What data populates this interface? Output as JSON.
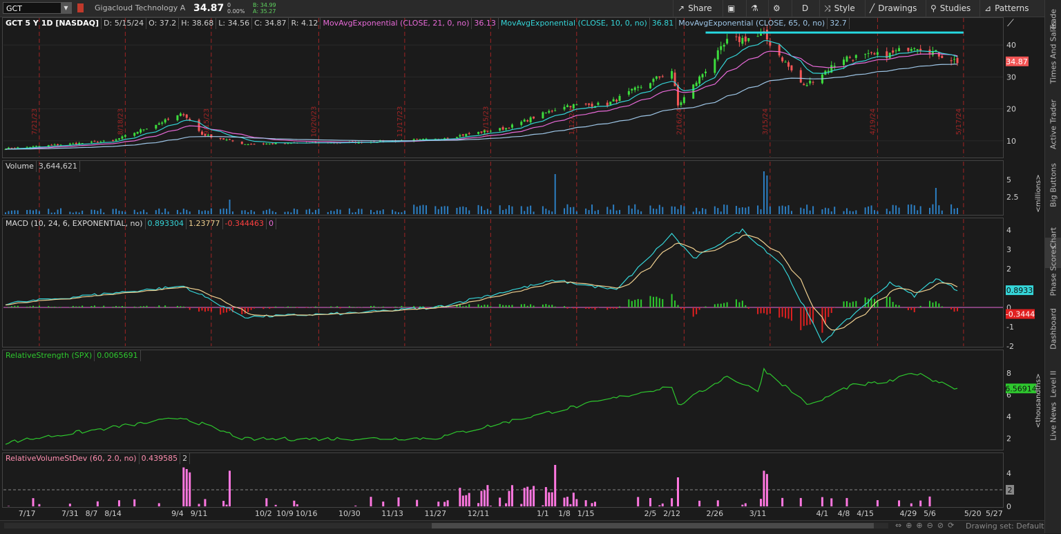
{
  "topbar": {
    "symbol": "GCT",
    "company": "Gigacloud Technology A",
    "last": "34.87",
    "change_line1": "0",
    "change_line2": "0.00%",
    "bid": "B: 34.99",
    "ask": "A: 35.27",
    "share": "Share",
    "timeframe": "D",
    "style": "Style",
    "drawings": "Drawings",
    "studies": "Studies",
    "patterns": "Patterns"
  },
  "price_panel": {
    "title": "GCT 5 Y 1D [NASDAQ]",
    "ohlc": [
      "D: 5/15/24",
      "O: 37.2",
      "H: 38.68",
      "L: 34.56",
      "C: 34.87",
      "R: 4.12"
    ],
    "ema21_label": "MovAvgExponential (CLOSE, 21, 0, no)",
    "ema21_value": "36.13",
    "ema10_label": "MovAvgExponential (CLOSE, 10, 0, no)",
    "ema10_value": "36.81",
    "ema65_label": "MovAvgExponential (CLOSE, 65, 0, no)",
    "ema65_value": "32.7",
    "price_tag": "34.87",
    "y_ticks": [
      "40",
      "30",
      "20",
      "10"
    ],
    "event_dates": [
      "7/21/23",
      "8/18/23",
      "9/15/23",
      "10/20/23",
      "11/17/23",
      "12/15/23",
      "1/12/24",
      "2/16/24",
      "3/15/24",
      "4/19/24",
      "5/17/24"
    ]
  },
  "volume_panel": {
    "title": "Volume",
    "value": "3,644,621",
    "y_ticks": [
      "5",
      "2.5"
    ],
    "units": "<millions>"
  },
  "macd_panel": {
    "title": "MACD (10, 24, 6, EXPONENTIAL, no)",
    "value": "0.893304",
    "avg": "1.23777",
    "diff": "-0.344463",
    "zero": "0",
    "y_ticks": [
      "4",
      "3",
      "2",
      "0",
      "-1",
      "-2"
    ],
    "value_tag": "0.8933",
    "diff_tag": "-0.3444"
  },
  "rs_panel": {
    "title": "RelativeStrength (SPX)",
    "value": "0.0065691",
    "y_ticks": [
      "8",
      "6",
      "4",
      "2"
    ],
    "value_tag": "6.56914",
    "units": "<thousandths>"
  },
  "rvsd_panel": {
    "title": "RelativeVolumeStDev (60, 2.0, no)",
    "value": "0.439585",
    "threshold": "2",
    "y_ticks": [
      "4",
      "0"
    ],
    "threshold_tag": "2"
  },
  "x_axis": [
    "7/17",
    "7/31",
    "8/7",
    "8/14",
    "9/4",
    "9/11",
    "10/2",
    "10/9",
    "10/16",
    "10/30",
    "11/13",
    "11/27",
    "12/11",
    "1/1",
    "1/8",
    "1/15",
    "2/5",
    "2/12",
    "2/26",
    "3/11",
    "4/1",
    "4/8",
    "4/15",
    "4/29",
    "5/6",
    "5/20",
    "5/27"
  ],
  "right_tabs": [
    "Trade",
    "Times And Sales",
    "Active Trader",
    "Big Buttons",
    "Chart",
    "Phase Scores",
    "Dashboard",
    "Level II",
    "Live News"
  ],
  "bottombar": {
    "drawing_set": "Drawing set: Default"
  },
  "colors": {
    "up": "#3ddc3d",
    "down": "#f25555",
    "ema21": "#e86ad8",
    "ema10": "#35d5d8",
    "ema65": "#9fc7e8",
    "volume": "#2c7fc4",
    "macd_hist_up": "#2ecc2e",
    "macd_hist_down": "#e02020",
    "rs": "#2ec82e",
    "rvsd": "#ff77e0",
    "resistance": "#26d8e0"
  },
  "chart_data": [
    {
      "type": "candlestick",
      "title": "GCT 5 Y 1D [NASDAQ]",
      "x_start": "2023-07-10",
      "x_end": "2024-05-15",
      "ylim": [
        5,
        45
      ],
      "close_path": [
        [
          "2023-07-10",
          7.6
        ],
        [
          "2023-08-14",
          10.0
        ],
        [
          "2023-09-06",
          18.5
        ],
        [
          "2023-09-12",
          12.0
        ],
        [
          "2023-09-26",
          9.0
        ],
        [
          "2023-10-30",
          9.5
        ],
        [
          "2023-11-27",
          10.5
        ],
        [
          "2023-12-20",
          14.0
        ],
        [
          "2024-01-08",
          21.0
        ],
        [
          "2024-01-22",
          21.5
        ],
        [
          "2024-02-12",
          32.0
        ],
        [
          "2024-02-14",
          21.0
        ],
        [
          "2024-03-01",
          41.0
        ],
        [
          "2024-03-13",
          43.0
        ],
        [
          "2024-03-26",
          27.0
        ],
        [
          "2024-04-08",
          36.0
        ],
        [
          "2024-04-23",
          37.0
        ],
        [
          "2024-05-01",
          40.0
        ],
        [
          "2024-05-15",
          34.87
        ]
      ],
      "resistance": {
        "from": "2024-02-23",
        "to": "2024-05-17",
        "level": 43.9
      },
      "legend": [
        "MovAvgExponential (CLOSE, 21, 0, no)",
        "MovAvgExponential (CLOSE, 10, 0, no)",
        "MovAvgExponential (CLOSE, 65, 0, no)"
      ]
    },
    {
      "type": "bar",
      "title": "Volume",
      "units": "millions",
      "ylim": [
        0,
        6
      ],
      "spikes": [
        [
          "2023-09-21",
          3.5
        ],
        [
          "2024-01-05",
          5.8
        ],
        [
          "2024-03-13",
          6.2
        ],
        [
          "2024-03-14",
          5.6
        ],
        [
          "2024-05-08",
          3.8
        ]
      ],
      "baseline": 1.2
    },
    {
      "type": "line",
      "title": "MACD (10, 24, 6, EXPONENTIAL, no)",
      "ylim": [
        -2,
        4
      ],
      "macd_path": [
        [
          "2023-07-10",
          0.2
        ],
        [
          "2023-09-06",
          1.1
        ],
        [
          "2023-09-26",
          -0.5
        ],
        [
          "2023-10-30",
          -0.3
        ],
        [
          "2023-11-27",
          0.0
        ],
        [
          "2024-01-05",
          1.4
        ],
        [
          "2024-01-25",
          0.9
        ],
        [
          "2024-02-12",
          3.8
        ],
        [
          "2024-02-19",
          2.5
        ],
        [
          "2024-03-06",
          4.0
        ],
        [
          "2024-03-19",
          2.2
        ],
        [
          "2024-04-01",
          -1.8
        ],
        [
          "2024-04-23",
          1.3
        ],
        [
          "2024-05-01",
          0.6
        ],
        [
          "2024-05-08",
          1.5
        ],
        [
          "2024-05-15",
          0.89
        ]
      ]
    },
    {
      "type": "line",
      "title": "RelativeStrength (SPX)",
      "units": "thousandths",
      "ylim": [
        1,
        9
      ],
      "rs_path": [
        [
          "2023-07-10",
          1.6
        ],
        [
          "2023-09-06",
          3.9
        ],
        [
          "2023-09-26",
          1.9
        ],
        [
          "2023-11-27",
          2.0
        ],
        [
          "2024-01-05",
          4.5
        ],
        [
          "2024-02-12",
          6.8
        ],
        [
          "2024-02-14",
          5.0
        ],
        [
          "2024-03-01",
          7.7
        ],
        [
          "2024-03-11",
          6.3
        ],
        [
          "2024-03-13",
          8.3
        ],
        [
          "2024-03-28",
          5.0
        ],
        [
          "2024-04-10",
          6.8
        ],
        [
          "2024-04-23",
          7.2
        ],
        [
          "2024-05-01",
          8.0
        ],
        [
          "2024-05-15",
          6.57
        ]
      ]
    },
    {
      "type": "bar",
      "title": "RelativeVolumeStDev (60, 2.0, no)",
      "ylim": [
        0,
        5
      ],
      "threshold": 2,
      "spikes": [
        [
          "2023-09-06",
          4.7
        ],
        [
          "2023-09-07",
          4.5
        ],
        [
          "2023-09-08",
          4.1
        ],
        [
          "2023-09-21",
          4.3
        ],
        [
          "2024-01-05",
          5.0
        ],
        [
          "2024-02-14",
          3.5
        ],
        [
          "2024-03-13",
          4.3
        ],
        [
          "2024-03-14",
          3.9
        ]
      ]
    }
  ]
}
